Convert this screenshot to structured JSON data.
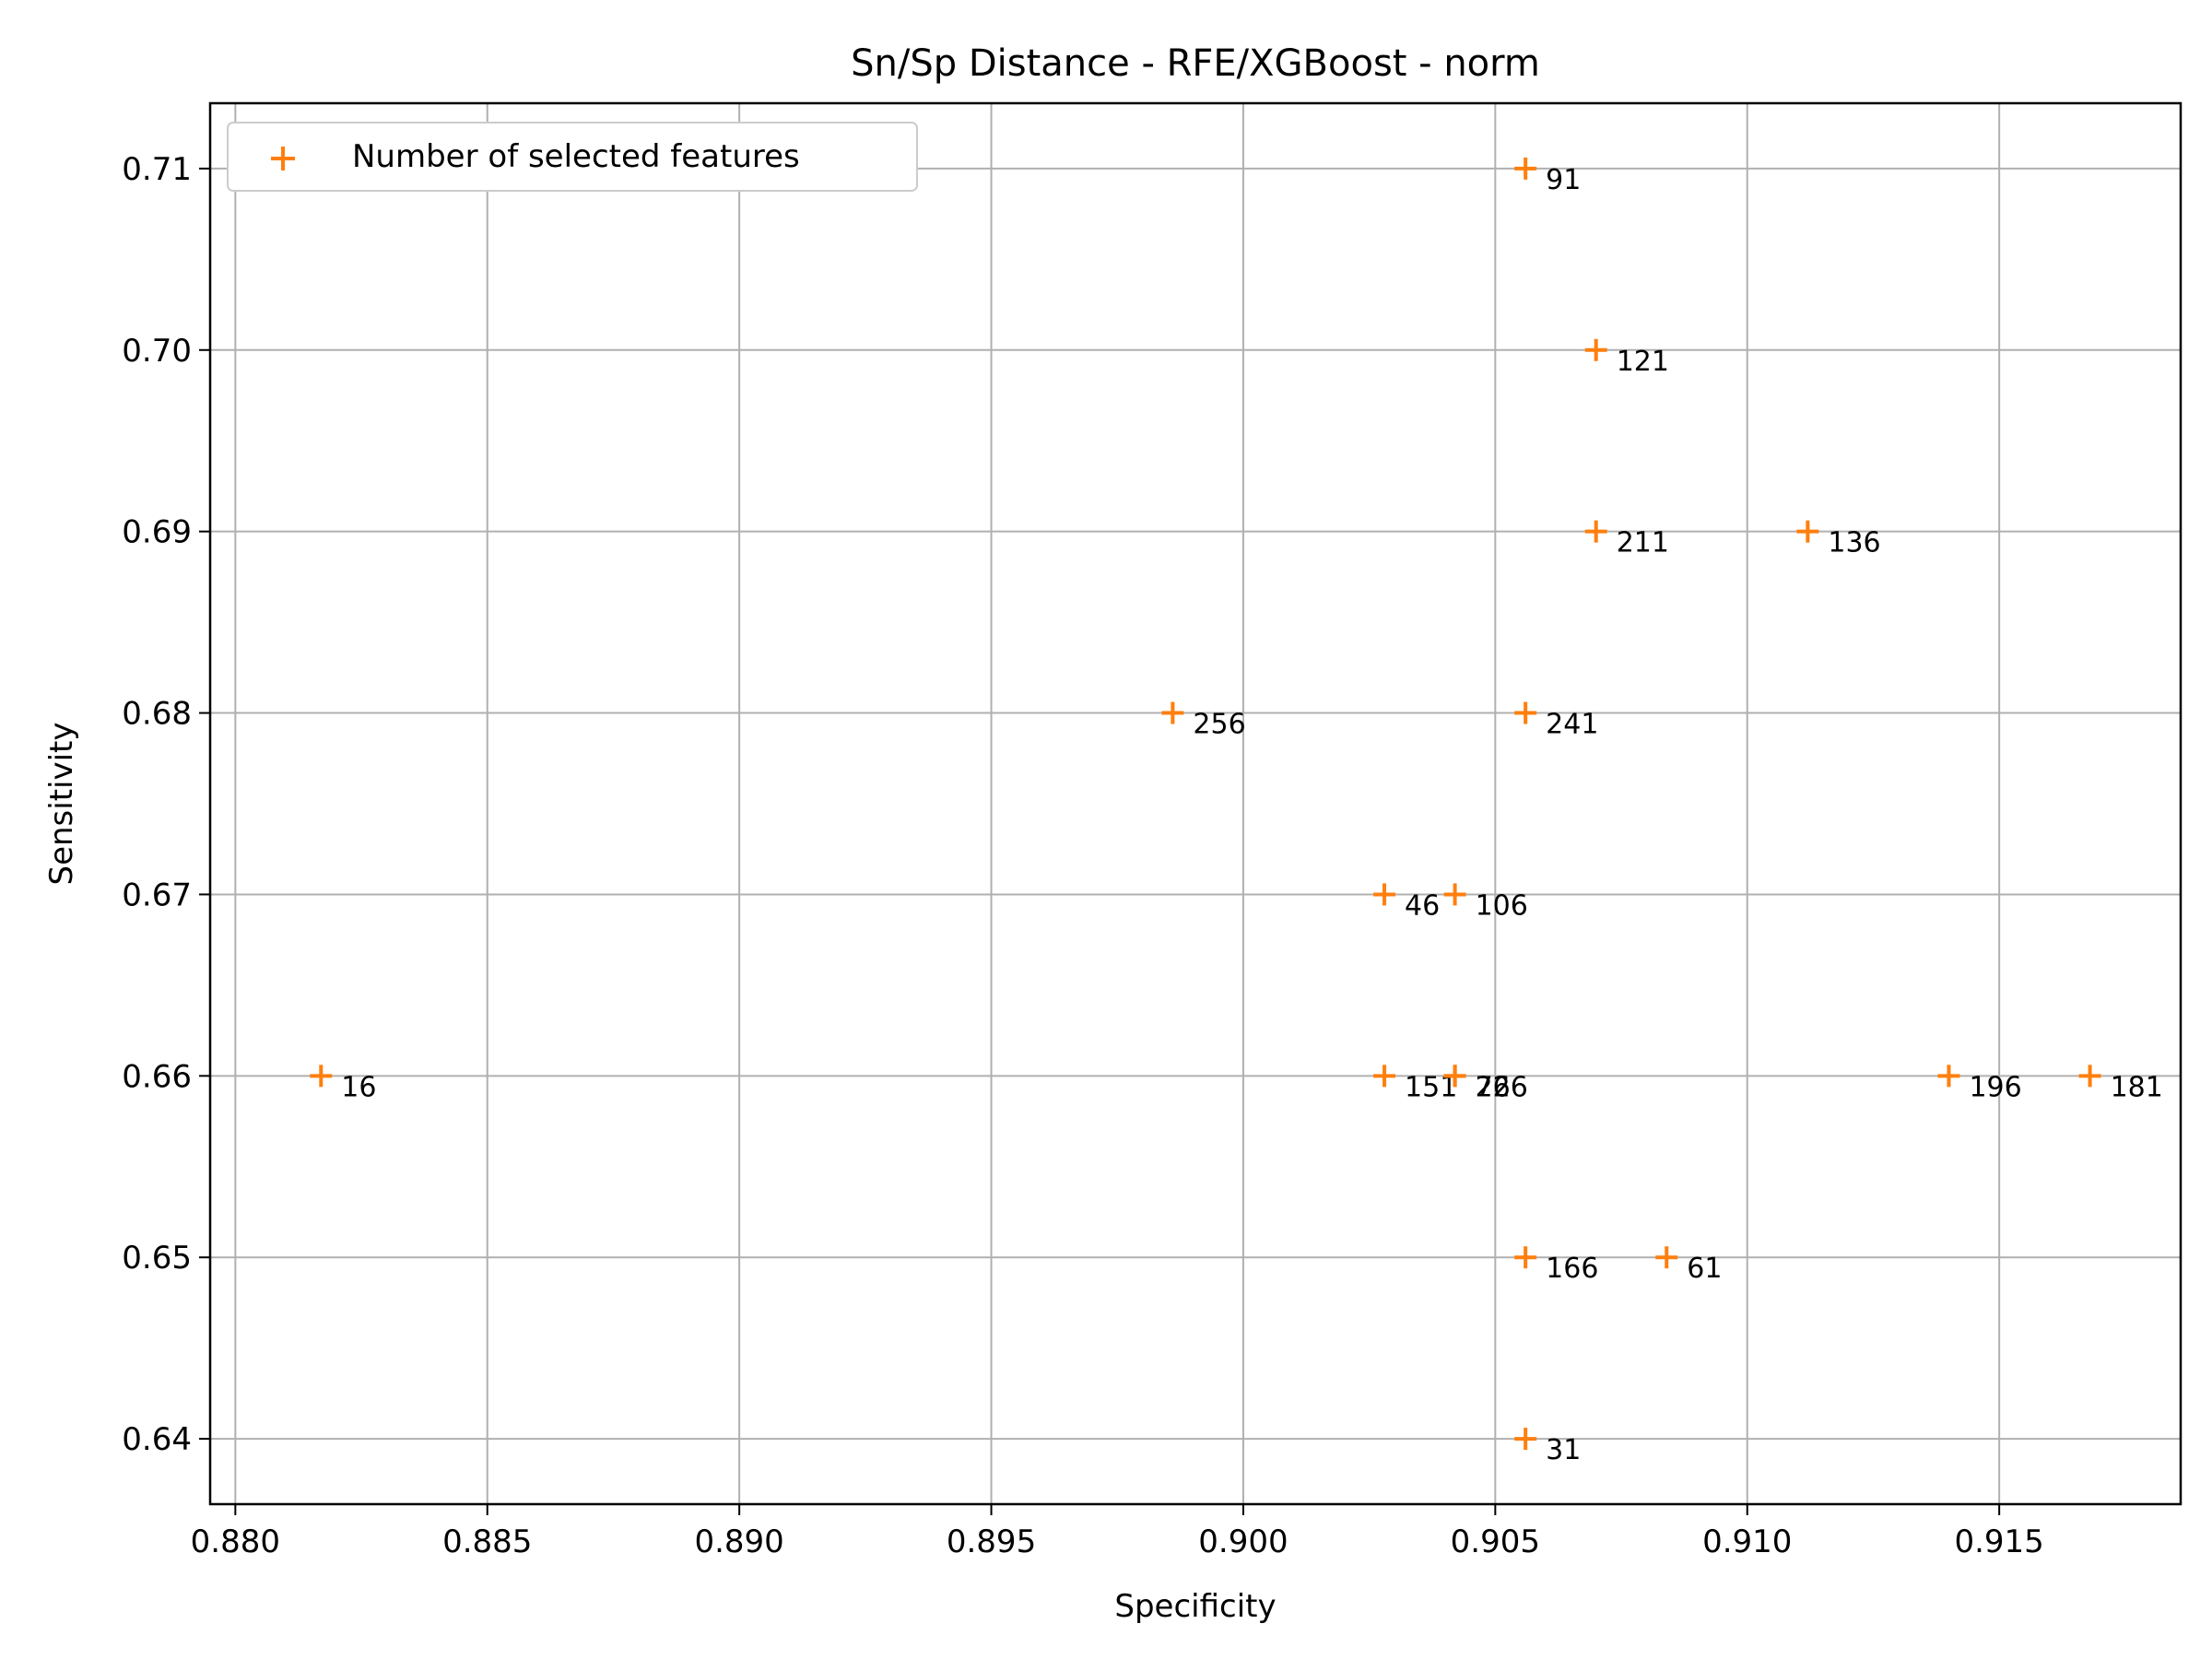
{
  "chart_data": {
    "type": "scatter",
    "title": "Sn/Sp Distance - RFE/XGBoost - norm",
    "xlabel": "Specificity",
    "ylabel": "Sensitivity",
    "xlim": [
      0.8795,
      0.9186
    ],
    "ylim": [
      0.6364,
      0.7136
    ],
    "x_ticks": [
      "0.880",
      "0.885",
      "0.890",
      "0.895",
      "0.900",
      "0.905",
      "0.910",
      "0.915"
    ],
    "y_ticks": [
      "0.64",
      "0.65",
      "0.66",
      "0.67",
      "0.68",
      "0.69",
      "0.70",
      "0.71"
    ],
    "grid": true,
    "legend": {
      "position": "upper-left",
      "entries": [
        "Number of selected features"
      ]
    },
    "marker": "+",
    "color": "#ff7f0e",
    "series": [
      {
        "name": "Number of selected features",
        "points": [
          {
            "x": 0.9056,
            "y": 0.71,
            "label": "91"
          },
          {
            "x": 0.907,
            "y": 0.7,
            "label": "121"
          },
          {
            "x": 0.907,
            "y": 0.69,
            "label": "211"
          },
          {
            "x": 0.9112,
            "y": 0.69,
            "label": "136"
          },
          {
            "x": 0.8986,
            "y": 0.68,
            "label": "256"
          },
          {
            "x": 0.9056,
            "y": 0.68,
            "label": "241"
          },
          {
            "x": 0.9028,
            "y": 0.67,
            "label": "46"
          },
          {
            "x": 0.9042,
            "y": 0.67,
            "label": "106"
          },
          {
            "x": 0.8817,
            "y": 0.66,
            "label": "16"
          },
          {
            "x": 0.9028,
            "y": 0.66,
            "label": "151"
          },
          {
            "x": 0.9042,
            "y": 0.66,
            "label": "76"
          },
          {
            "x": 0.9042,
            "y": 0.66,
            "label": "226"
          },
          {
            "x": 0.914,
            "y": 0.66,
            "label": "196"
          },
          {
            "x": 0.9168,
            "y": 0.66,
            "label": "181"
          },
          {
            "x": 0.9056,
            "y": 0.65,
            "label": "166"
          },
          {
            "x": 0.9084,
            "y": 0.65,
            "label": "61"
          },
          {
            "x": 0.9056,
            "y": 0.64,
            "label": "31"
          }
        ]
      }
    ]
  }
}
